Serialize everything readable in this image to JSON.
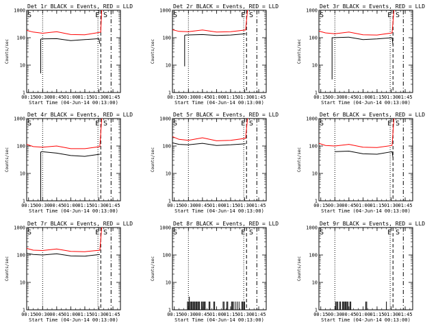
{
  "chart_data": [
    {
      "type": "line",
      "title": "Det 1r  BLACK = Events, RED = LLD",
      "xlabel": "Start Time (04-Jun-14 00:13:00)",
      "ylabel": "Counts/sec",
      "yscale": "log",
      "ylim": [
        1,
        1000
      ],
      "x_ticks": [
        "00:15",
        "00:30",
        "00:45",
        "01:00",
        "01:15",
        "01:30",
        "01:45"
      ],
      "y_ticks": [
        "1",
        "10",
        "100",
        "1000"
      ],
      "markers": [
        {
          "label": "S",
          "time": "00:13",
          "style": "none"
        },
        {
          "label": "",
          "time": "00:30",
          "style": "dotted"
        },
        {
          "label": "",
          "time": "01:29",
          "style": "dotted"
        },
        {
          "label": "E",
          "time": "01:32",
          "style": "dashed"
        },
        {
          "label": "S",
          "time": "01:34",
          "style": "none"
        },
        {
          "label": "",
          "time": "01:43",
          "style": "dashdot"
        }
      ],
      "series": [
        {
          "name": "Events",
          "color": "#000000",
          "x": [
            "00:13",
            "00:28",
            "00:28",
            "00:29",
            "00:45",
            "01:00",
            "01:15",
            "01:30",
            "01:31"
          ],
          "y": [
            null,
            5,
            88,
            90,
            92,
            78,
            85,
            92,
            60
          ]
        },
        {
          "name": "LLD",
          "color": "#ff0000",
          "x": [
            "00:13",
            "00:20",
            "00:30",
            "00:45",
            "01:00",
            "01:15",
            "01:30",
            "01:32",
            "01:33",
            "01:34"
          ],
          "y": [
            185,
            160,
            145,
            165,
            130,
            128,
            155,
            160,
            1000,
            1000
          ]
        }
      ]
    },
    {
      "type": "line",
      "title": "Det 2r  BLACK = Events, RED = LLD",
      "xlabel": "Start Time (04-Jun-14 00:13:00)",
      "ylabel": "Counts/sec",
      "yscale": "log",
      "ylim": [
        1,
        1000
      ],
      "x_ticks": [
        "00:15",
        "00:30",
        "00:45",
        "01:00",
        "01:15",
        "01:30",
        "01:45"
      ],
      "y_ticks": [
        "1",
        "10",
        "100",
        "1000"
      ],
      "markers": [
        {
          "label": "S",
          "time": "00:13",
          "style": "none"
        },
        {
          "label": "",
          "time": "00:30",
          "style": "dotted"
        },
        {
          "label": "",
          "time": "01:29",
          "style": "dotted"
        },
        {
          "label": "E",
          "time": "01:32",
          "style": "dashed"
        },
        {
          "label": "S",
          "time": "01:34",
          "style": "none"
        },
        {
          "label": "",
          "time": "01:43",
          "style": "dashdot"
        }
      ],
      "series": [
        {
          "name": "Events",
          "color": "#000000",
          "x": [
            "00:13",
            "00:26",
            "00:26",
            "00:27",
            "00:45",
            "01:00",
            "01:15",
            "01:31"
          ],
          "y": [
            null,
            9,
            120,
            125,
            130,
            120,
            125,
            140
          ]
        },
        {
          "name": "LLD",
          "color": "#ff0000",
          "x": [
            "00:13",
            "00:20",
            "00:30",
            "00:45",
            "01:00",
            "01:15",
            "01:31",
            "01:33",
            "01:34"
          ],
          "y": [
            195,
            170,
            165,
            190,
            160,
            165,
            190,
            1000,
            1000
          ]
        }
      ]
    },
    {
      "type": "line",
      "title": "Det 3r  BLACK = Events, RED = LLD",
      "xlabel": "Start Time (04-Jun-14 00:13:00)",
      "ylabel": "Counts/sec",
      "yscale": "log",
      "ylim": [
        1,
        1000
      ],
      "x_ticks": [
        "00:15",
        "00:30",
        "00:45",
        "01:00",
        "01:15",
        "01:30",
        "01:45"
      ],
      "y_ticks": [
        "1",
        "10",
        "100",
        "1000"
      ],
      "markers": [
        {
          "label": "S",
          "time": "00:13",
          "style": "none"
        },
        {
          "label": "",
          "time": "00:30",
          "style": "dotted"
        },
        {
          "label": "",
          "time": "01:29",
          "style": "dotted"
        },
        {
          "label": "E",
          "time": "01:32",
          "style": "dashed"
        },
        {
          "label": "S",
          "time": "01:34",
          "style": "none"
        },
        {
          "label": "",
          "time": "01:43",
          "style": "dashdot"
        }
      ],
      "series": [
        {
          "name": "Events",
          "color": "#000000",
          "x": [
            "00:13",
            "00:27",
            "00:27",
            "00:28",
            "00:45",
            "01:00",
            "01:15",
            "01:31",
            "01:32"
          ],
          "y": [
            null,
            3,
            100,
            100,
            105,
            85,
            90,
            100,
            55
          ]
        },
        {
          "name": "LLD",
          "color": "#ff0000",
          "x": [
            "00:13",
            "00:20",
            "00:30",
            "00:45",
            "01:00",
            "01:15",
            "01:31",
            "01:33",
            "01:34"
          ],
          "y": [
            175,
            150,
            140,
            160,
            128,
            125,
            150,
            1000,
            1000
          ]
        }
      ]
    },
    {
      "type": "line",
      "title": "Det 4r  BLACK = Events, RED = LLD",
      "xlabel": "Start Time (04-Jun-14 00:13:00)",
      "ylabel": "Counts/sec",
      "yscale": "log",
      "ylim": [
        1,
        1000
      ],
      "x_ticks": [
        "00:15",
        "00:30",
        "00:45",
        "01:00",
        "01:15",
        "01:30",
        "01:45"
      ],
      "y_ticks": [
        "1",
        "10",
        "100",
        "1000"
      ],
      "markers": [
        {
          "label": "S",
          "time": "00:13",
          "style": "none"
        },
        {
          "label": "",
          "time": "00:30",
          "style": "dotted"
        },
        {
          "label": "",
          "time": "01:29",
          "style": "dotted"
        },
        {
          "label": "E",
          "time": "01:32",
          "style": "dashed"
        },
        {
          "label": "S",
          "time": "01:34",
          "style": "none"
        },
        {
          "label": "",
          "time": "01:43",
          "style": "dashdot"
        }
      ],
      "series": [
        {
          "name": "Events",
          "color": "#000000",
          "x": [
            "00:13",
            "00:28",
            "00:28",
            "00:29",
            "00:45",
            "01:00",
            "01:15",
            "01:31"
          ],
          "y": [
            null,
            1,
            60,
            62,
            55,
            45,
            42,
            50
          ]
        },
        {
          "name": "LLD",
          "color": "#ff0000",
          "x": [
            "00:13",
            "00:20",
            "00:30",
            "00:45",
            "01:00",
            "01:15",
            "01:31",
            "01:33",
            "01:34"
          ],
          "y": [
            115,
            95,
            90,
            100,
            80,
            80,
            95,
            1000,
            1000
          ]
        }
      ]
    },
    {
      "type": "line",
      "title": "Det 5r  BLACK = Events, RED = LLD",
      "xlabel": "Start Time (04-Jun-14 00:13:00)",
      "ylabel": "Counts/sec",
      "yscale": "log",
      "ylim": [
        1,
        1000
      ],
      "x_ticks": [
        "00:15",
        "00:30",
        "00:45",
        "01:00",
        "01:15",
        "01:30",
        "01:45"
      ],
      "y_ticks": [
        "1",
        "10",
        "100",
        "1000"
      ],
      "markers": [
        {
          "label": "S",
          "time": "00:13",
          "style": "none"
        },
        {
          "label": "",
          "time": "00:30",
          "style": "dotted"
        },
        {
          "label": "",
          "time": "01:29",
          "style": "dotted"
        },
        {
          "label": "E",
          "time": "01:32",
          "style": "dashed"
        },
        {
          "label": "S",
          "time": "01:34",
          "style": "none"
        },
        {
          "label": "",
          "time": "01:43",
          "style": "dashdot"
        }
      ],
      "series": [
        {
          "name": "Events",
          "color": "#000000",
          "x": [
            "00:13",
            "00:20",
            "00:30",
            "00:45",
            "01:00",
            "01:15",
            "01:31"
          ],
          "y": [
            130,
            115,
            110,
            125,
            105,
            110,
            120
          ]
        },
        {
          "name": "LLD",
          "color": "#ff0000",
          "x": [
            "00:13",
            "00:20",
            "00:30",
            "00:45",
            "01:00",
            "01:15",
            "01:31",
            "01:33",
            "01:34"
          ],
          "y": [
            220,
            175,
            160,
            200,
            155,
            160,
            190,
            1000,
            1000
          ]
        }
      ]
    },
    {
      "type": "line",
      "title": "Det 6r  BLACK = Events, RED = LLD",
      "xlabel": "Start Time (04-Jun-14 00:13:00)",
      "ylabel": "Counts/sec",
      "yscale": "log",
      "ylim": [
        1,
        1000
      ],
      "x_ticks": [
        "00:15",
        "00:30",
        "00:45",
        "01:00",
        "01:15",
        "01:30",
        "01:45"
      ],
      "y_ticks": [
        "1",
        "10",
        "100",
        "1000"
      ],
      "markers": [
        {
          "label": "S",
          "time": "00:13",
          "style": "none"
        },
        {
          "label": "",
          "time": "00:30",
          "style": "dotted"
        },
        {
          "label": "",
          "time": "01:29",
          "style": "dotted"
        },
        {
          "label": "E",
          "time": "01:32",
          "style": "dashed"
        },
        {
          "label": "S",
          "time": "01:34",
          "style": "none"
        },
        {
          "label": "",
          "time": "01:43",
          "style": "dashdot"
        }
      ],
      "series": [
        {
          "name": "Events",
          "color": "#000000",
          "x": [
            "00:13",
            "00:30",
            "00:30",
            "00:45",
            "01:00",
            "01:15",
            "01:31",
            "01:32"
          ],
          "y": [
            null,
            null,
            62,
            65,
            52,
            50,
            62,
            38
          ]
        },
        {
          "name": "LLD",
          "color": "#ff0000",
          "x": [
            "00:13",
            "00:20",
            "00:30",
            "00:45",
            "01:00",
            "01:15",
            "01:31",
            "01:33",
            "01:34"
          ],
          "y": [
            125,
            105,
            100,
            115,
            90,
            88,
            105,
            1000,
            1000
          ]
        }
      ]
    },
    {
      "type": "line",
      "title": "Det 7r  BLACK = Events, RED = LLD",
      "xlabel": "Start Time (04-Jun-14 00:13:00)",
      "ylabel": "Counts/sec",
      "yscale": "log",
      "ylim": [
        1,
        1000
      ],
      "x_ticks": [
        "00:15",
        "00:30",
        "00:45",
        "01:00",
        "01:15",
        "01:30",
        "01:45"
      ],
      "y_ticks": [
        "1",
        "10",
        "100",
        "1000"
      ],
      "markers": [
        {
          "label": "S",
          "time": "00:13",
          "style": "none"
        },
        {
          "label": "",
          "time": "00:30",
          "style": "dotted"
        },
        {
          "label": "",
          "time": "01:29",
          "style": "dotted"
        },
        {
          "label": "E",
          "time": "01:32",
          "style": "dashed"
        },
        {
          "label": "S",
          "time": "01:34",
          "style": "none"
        },
        {
          "label": "",
          "time": "01:43",
          "style": "dashdot"
        }
      ],
      "series": [
        {
          "name": "Events",
          "color": "#000000",
          "x": [
            "00:13",
            "00:20",
            "00:30",
            "00:45",
            "01:00",
            "01:15",
            "01:31"
          ],
          "y": [
            115,
            105,
            100,
            110,
            92,
            90,
            105
          ]
        },
        {
          "name": "LLD",
          "color": "#ff0000",
          "x": [
            "00:13",
            "00:20",
            "00:30",
            "00:45",
            "01:00",
            "01:15",
            "01:31",
            "01:33",
            "01:34"
          ],
          "y": [
            175,
            150,
            145,
            165,
            135,
            132,
            150,
            1000,
            1000
          ]
        }
      ]
    },
    {
      "type": "line",
      "title": "Det 8r  BLACK = Events, RED = LLD",
      "xlabel": "Start Time (04-Jun-14 00:13:00)",
      "ylabel": "Counts/sec",
      "yscale": "log",
      "ylim": [
        1,
        1000
      ],
      "x_ticks": [
        "00:15",
        "00:30",
        "00:45",
        "01:00",
        "01:15",
        "01:30",
        "01:45"
      ],
      "y_ticks": [
        "1",
        "10",
        "100",
        "1000"
      ],
      "markers": [
        {
          "label": "S",
          "time": "00:13",
          "style": "none"
        },
        {
          "label": "",
          "time": "00:30",
          "style": "dotted"
        },
        {
          "label": "",
          "time": "01:29",
          "style": "dotted"
        },
        {
          "label": "E",
          "time": "01:32",
          "style": "dashed"
        },
        {
          "label": "S",
          "time": "01:34",
          "style": "none"
        },
        {
          "label": "",
          "time": "01:43",
          "style": "dashdot"
        }
      ],
      "spikes": {
        "color": "#000000",
        "baseline": 1,
        "x": [
          "00:29",
          "00:30",
          "00:31",
          "00:32",
          "00:33",
          "00:34",
          "00:35",
          "00:36",
          "00:37",
          "00:38",
          "00:39",
          "00:40",
          "00:41",
          "00:42",
          "00:44",
          "00:45",
          "00:46",
          "00:47",
          "00:48",
          "00:52",
          "00:53",
          "00:57",
          "00:58",
          "01:07",
          "01:08",
          "01:11",
          "01:12",
          "01:16",
          "01:17",
          "01:18",
          "01:20",
          "01:22",
          "01:24",
          "01:27",
          "01:28",
          "01:29",
          "01:30"
        ],
        "y": [
          2,
          2,
          3,
          2,
          2,
          2,
          2,
          2,
          2,
          2,
          2,
          2,
          2,
          2,
          2,
          2,
          2,
          2,
          2,
          2,
          2,
          2,
          2,
          2,
          2,
          2,
          2,
          2,
          2,
          2,
          2,
          2,
          2,
          2,
          2,
          2,
          2
        ]
      }
    },
    {
      "type": "line",
      "title": "Det 9r  BLACK = Events, RED = LLD",
      "xlabel": "Start Time (04-Jun-14 00:13:00)",
      "ylabel": "Counts/sec",
      "yscale": "log",
      "ylim": [
        1,
        1000
      ],
      "x_ticks": [
        "00:15",
        "00:30",
        "00:45",
        "01:00",
        "01:15",
        "01:30",
        "01:45"
      ],
      "y_ticks": [
        "1",
        "10",
        "100",
        "1000"
      ],
      "markers": [
        {
          "label": "S",
          "time": "00:13",
          "style": "none"
        },
        {
          "label": "",
          "time": "00:30",
          "style": "dotted"
        },
        {
          "label": "",
          "time": "01:29",
          "style": "dotted"
        },
        {
          "label": "E",
          "time": "01:32",
          "style": "dashed"
        },
        {
          "label": "S",
          "time": "01:34",
          "style": "none"
        },
        {
          "label": "",
          "time": "01:43",
          "style": "dashdot"
        }
      ],
      "spikes": {
        "color": "#000000",
        "baseline": 1,
        "x": [
          "00:31",
          "00:32",
          "00:33",
          "00:35",
          "00:36",
          "00:38",
          "00:39",
          "00:40",
          "00:41",
          "00:42",
          "00:43",
          "00:44",
          "00:46",
          "00:47",
          "01:03",
          "01:04",
          "01:25"
        ],
        "y": [
          2,
          2,
          2,
          2,
          2,
          2,
          2,
          2,
          2,
          2,
          2,
          2,
          2,
          2,
          2,
          2,
          2
        ]
      }
    }
  ]
}
